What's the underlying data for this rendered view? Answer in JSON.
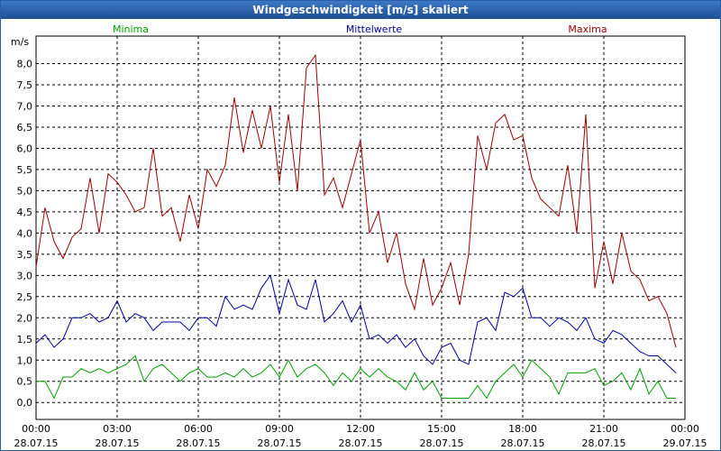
{
  "window_title": "Windgeschwindigkeit [m/s] skaliert",
  "chart_data": {
    "type": "line",
    "y_unit": "m/s",
    "x": [
      0,
      20,
      40,
      60,
      80,
      100,
      120,
      140,
      160,
      180,
      200,
      220,
      240,
      260,
      280,
      300,
      320,
      340,
      360,
      380,
      400,
      420,
      440,
      460,
      480,
      500,
      520,
      540,
      560,
      580,
      600,
      620,
      640,
      660,
      680,
      700,
      720,
      740,
      760,
      780,
      800,
      820,
      840,
      860,
      880,
      900,
      920,
      940,
      960,
      980,
      1000,
      1020,
      1040,
      1060,
      1080,
      1100,
      1120,
      1140,
      1160,
      1180,
      1200,
      1220,
      1240,
      1260,
      1280,
      1300,
      1320,
      1340,
      1360,
      1380,
      1400,
      1420
    ],
    "xlim": [
      0,
      1440
    ],
    "xticks": [
      {
        "value": 0,
        "label": "00:00",
        "date": "28.07.15"
      },
      {
        "value": 180,
        "label": "03:00",
        "date": "28.07.15"
      },
      {
        "value": 360,
        "label": "06:00",
        "date": "28.07.15"
      },
      {
        "value": 540,
        "label": "09:00",
        "date": "28.07.15"
      },
      {
        "value": 720,
        "label": "12:00",
        "date": "28.07.15"
      },
      {
        "value": 900,
        "label": "15:00",
        "date": "28.07.15"
      },
      {
        "value": 1080,
        "label": "18:00",
        "date": "28.07.15"
      },
      {
        "value": 1260,
        "label": "21:00",
        "date": "28.07.15"
      },
      {
        "value": 1440,
        "label": "00:00",
        "date": "29.07.15"
      }
    ],
    "ylim": [
      -0.4,
      8.65
    ],
    "yticks": [
      {
        "value": 0,
        "label": "0,0"
      },
      {
        "value": 0.5,
        "label": "0,5"
      },
      {
        "value": 1,
        "label": "1,0"
      },
      {
        "value": 1.5,
        "label": "1,5"
      },
      {
        "value": 2,
        "label": "2,0"
      },
      {
        "value": 2.5,
        "label": "2,5"
      },
      {
        "value": 3,
        "label": "3,0"
      },
      {
        "value": 3.5,
        "label": "3,5"
      },
      {
        "value": 4,
        "label": "4,0"
      },
      {
        "value": 4.5,
        "label": "4,5"
      },
      {
        "value": 5,
        "label": "5,0"
      },
      {
        "value": 5.5,
        "label": "5,5"
      },
      {
        "value": 6,
        "label": "6,0"
      },
      {
        "value": 6.5,
        "label": "6,5"
      },
      {
        "value": 7,
        "label": "7,0"
      },
      {
        "value": 7.5,
        "label": "7,5"
      },
      {
        "value": 8,
        "label": "8,0"
      }
    ],
    "grid": true,
    "series": [
      {
        "name": "Minima",
        "color": "#00a000",
        "values": [
          0.5,
          0.5,
          0.1,
          0.6,
          0.6,
          0.8,
          0.7,
          0.8,
          0.7,
          0.8,
          0.9,
          1.1,
          0.5,
          0.8,
          0.9,
          0.7,
          0.5,
          0.7,
          0.8,
          0.6,
          0.6,
          0.7,
          0.6,
          0.8,
          0.6,
          0.7,
          0.9,
          0.6,
          1.0,
          0.6,
          0.8,
          0.9,
          0.7,
          0.4,
          0.7,
          0.5,
          0.8,
          0.6,
          0.8,
          0.6,
          0.5,
          0.3,
          0.7,
          0.3,
          0.5,
          0.1,
          0.1,
          0.1,
          0.1,
          0.4,
          0.1,
          0.5,
          0.7,
          0.9,
          0.6,
          1.0,
          0.8,
          0.6,
          0.2,
          0.7,
          0.7,
          0.7,
          0.8,
          0.4,
          0.5,
          0.7,
          0.3,
          0.8,
          0.2,
          0.5,
          0.1,
          0.1
        ]
      },
      {
        "name": "Mittelwerte",
        "color": "#0000a0",
        "values": [
          1.4,
          1.6,
          1.3,
          1.5,
          2.0,
          2.0,
          2.1,
          1.9,
          2.0,
          2.4,
          1.9,
          2.1,
          2.0,
          1.7,
          1.9,
          1.9,
          1.9,
          1.7,
          2.0,
          2.0,
          1.8,
          2.5,
          2.2,
          2.3,
          2.2,
          2.7,
          3.0,
          2.1,
          2.9,
          2.3,
          2.2,
          2.9,
          1.9,
          2.1,
          2.4,
          1.9,
          2.3,
          1.5,
          1.6,
          1.4,
          1.6,
          1.3,
          1.5,
          1.1,
          0.9,
          1.3,
          1.4,
          1.0,
          0.9,
          1.9,
          2.0,
          1.7,
          2.6,
          2.5,
          2.7,
          2.0,
          2.0,
          1.8,
          2.0,
          1.9,
          1.7,
          2.0,
          1.5,
          1.4,
          1.7,
          1.6,
          1.4,
          1.2,
          1.1,
          1.1,
          0.9,
          0.7
        ]
      },
      {
        "name": "Maxima",
        "color": "#a00000",
        "values": [
          3.2,
          4.6,
          3.8,
          3.4,
          3.9,
          4.1,
          5.3,
          4.0,
          5.4,
          5.2,
          4.9,
          4.5,
          4.6,
          6.0,
          4.4,
          4.6,
          3.8,
          4.9,
          4.1,
          5.5,
          5.1,
          5.6,
          7.2,
          5.9,
          6.9,
          6.0,
          7.0,
          5.2,
          6.8,
          5.0,
          7.9,
          8.2,
          4.9,
          5.3,
          4.6,
          5.4,
          6.2,
          4.0,
          4.5,
          3.3,
          4.0,
          2.8,
          2.2,
          3.4,
          2.3,
          2.7,
          3.3,
          2.3,
          3.5,
          6.3,
          5.5,
          6.6,
          6.8,
          6.2,
          6.3,
          5.3,
          4.8,
          4.6,
          4.4,
          5.6,
          4.0,
          6.8,
          2.7,
          3.8,
          2.8,
          4.0,
          3.1,
          2.9,
          2.4,
          2.5,
          2.1,
          1.3
        ]
      }
    ]
  }
}
